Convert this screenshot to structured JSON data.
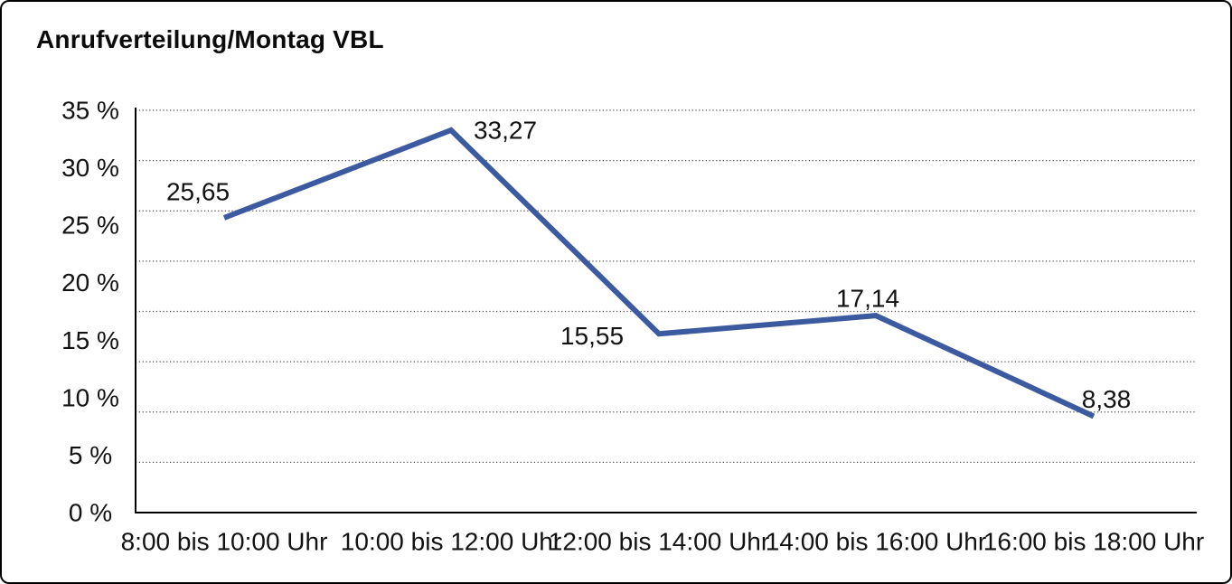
{
  "chart_data": {
    "type": "line",
    "title": "Anrufverteilung/Montag VBL",
    "categories": [
      "8:00 bis 10:00 Uhr",
      "10:00 bis 12:00 Uhr",
      "12:00 bis 14:00 Uhr",
      "14:00 bis 16:00 Uhr",
      "16:00 bis 18:00 Uhr"
    ],
    "values": [
      25.65,
      33.27,
      15.55,
      17.14,
      8.38
    ],
    "point_labels": [
      "25,65",
      "33,27",
      "15,55",
      "17,14",
      "8,38"
    ],
    "xlabel": "",
    "ylabel": "",
    "ylim": [
      0,
      35
    ],
    "ytick_labels": [
      "0 %",
      "5 %",
      "10 %",
      "15 %",
      "20 %",
      "25 %",
      "30 %",
      "35 %"
    ],
    "grid": "horizontal-dotted",
    "legend": "none",
    "line_color": "#3C5AA0",
    "axis_color": "#000000",
    "gridline_color": "#4a4a4a",
    "text_color": "#121212"
  }
}
